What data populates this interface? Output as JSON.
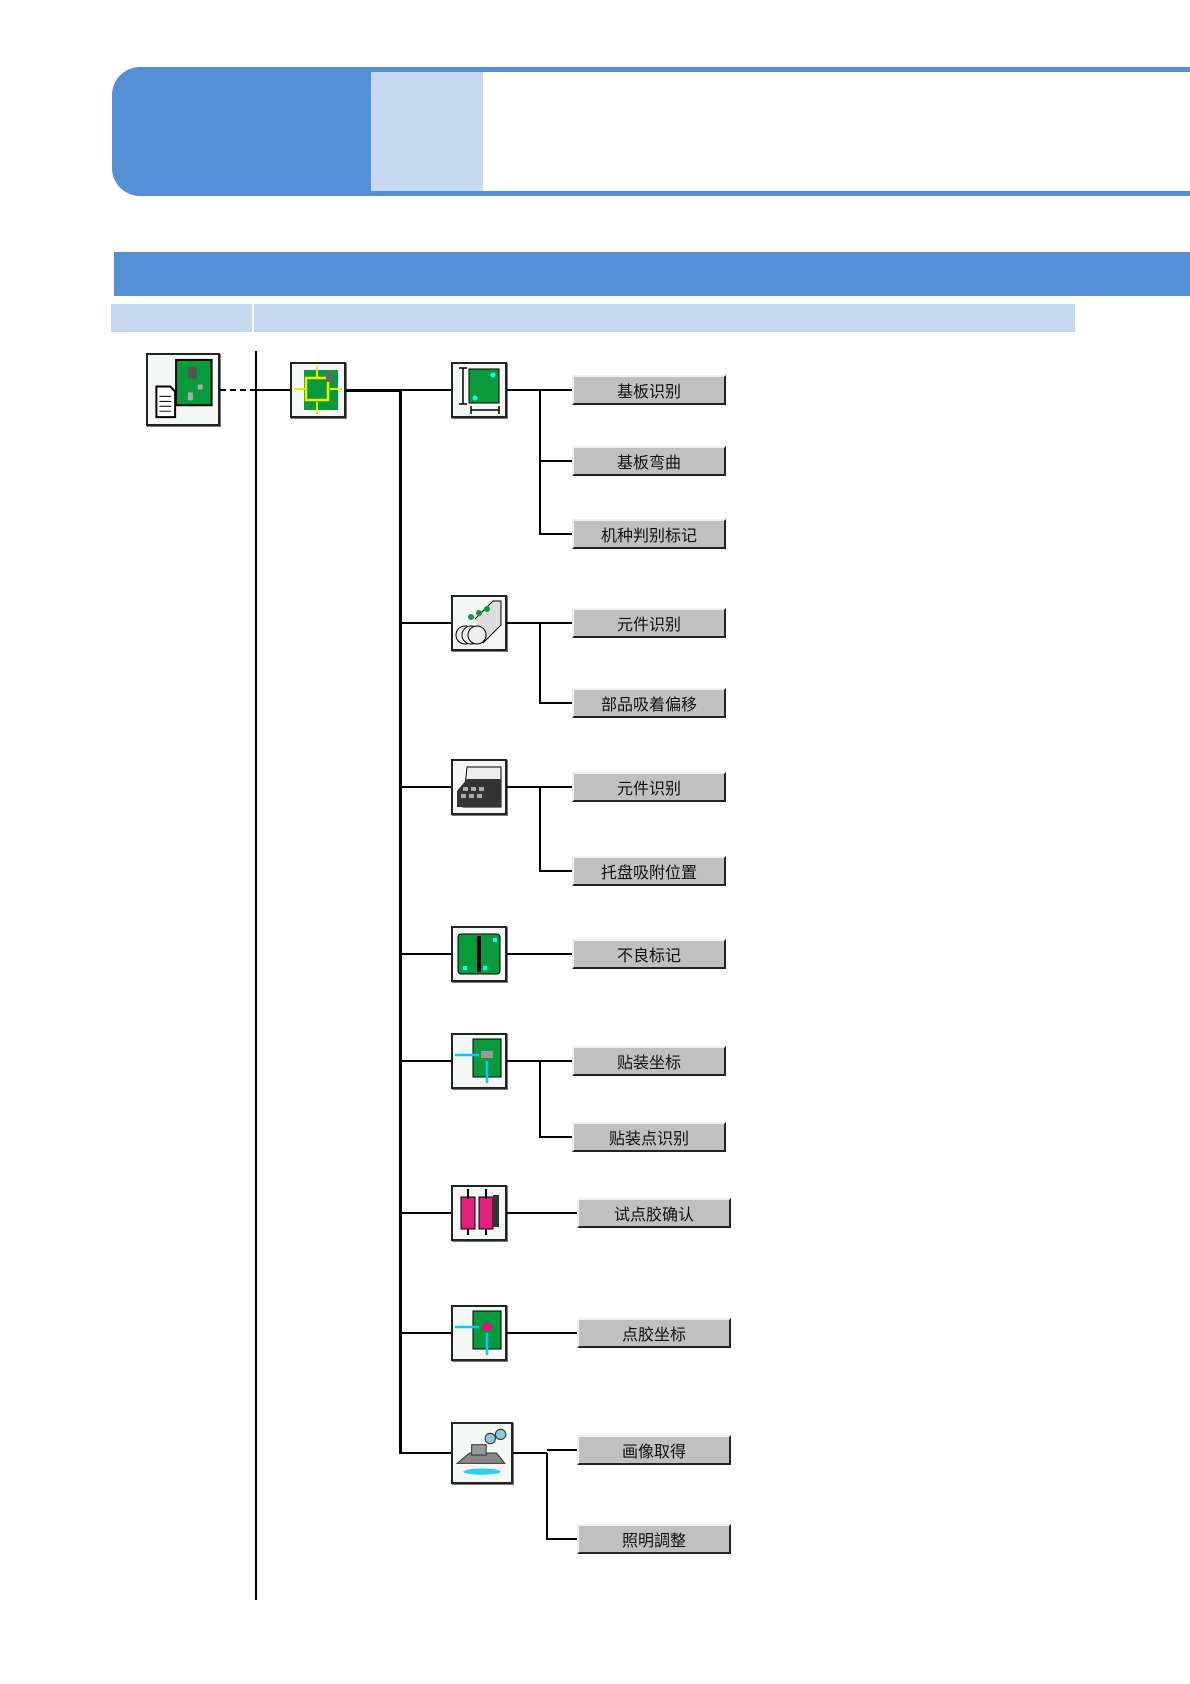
{
  "colors": {
    "header_blue": "#558fd5",
    "header_light": "#c6d9f1",
    "button_gray": "#c0c0c0",
    "pcb_green": "#0a9a3c"
  },
  "root": {
    "icon": "pcb-document-icon"
  },
  "level2": {
    "icon": "pcb-position-arrows-icon"
  },
  "groups": [
    {
      "icon": "board-dimension-icon",
      "items": [
        "基板识别",
        "基板弯曲",
        "机种判别标记"
      ]
    },
    {
      "icon": "feeder-tape-icon",
      "items": [
        "元件识别",
        "部品吸着偏移"
      ]
    },
    {
      "icon": "tray-icon",
      "items": [
        "元件识别",
        "托盘吸附位置"
      ]
    },
    {
      "icon": "bad-mark-board-icon",
      "items": [
        "不良标记"
      ]
    },
    {
      "icon": "mount-coordinate-icon",
      "items": [
        "贴装坐标",
        "贴装点识别"
      ]
    },
    {
      "icon": "dispenser-syringe-icon",
      "items": [
        "试点胶确认"
      ]
    },
    {
      "icon": "dispense-coordinate-icon",
      "items": [
        "点胶坐标"
      ]
    },
    {
      "icon": "camera-lighting-icon",
      "items": [
        "画像取得",
        "照明調整"
      ]
    }
  ]
}
